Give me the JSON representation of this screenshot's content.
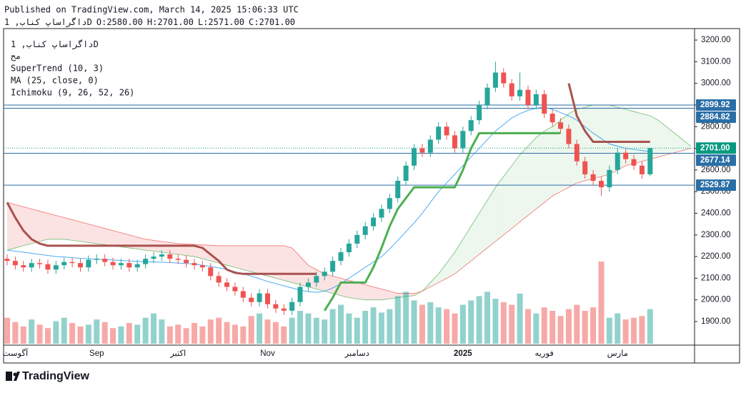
{
  "chart_data": {
    "type": "candlestick",
    "published": "Published on TradingView.com, March 14, 2025 15:06:33 UTC",
    "symbol": "داگراساپ کناب",
    "interval": "1D",
    "ohlc": [
      {
        "name": "O",
        "value": 2580,
        "label": "2580.00"
      },
      {
        "name": "H",
        "value": 2701,
        "label": "2701.00"
      },
      {
        "name": "L",
        "value": 2571,
        "label": "2571.00"
      },
      {
        "name": "C",
        "value": 2701,
        "label": "2701.00"
      }
    ],
    "legend": [
      "مح",
      "SuperTrend (10, 3)",
      "MA (25, close, 0)",
      "Ichimoku (9, 26, 52, 26)"
    ],
    "brand": "TradingView",
    "ylim": [
      1791,
      3253
    ],
    "yticks": [
      {
        "value": 1900,
        "label": "1900.00"
      },
      {
        "value": 2000,
        "label": "2000.00"
      },
      {
        "value": 2100,
        "label": "2100.00"
      },
      {
        "value": 2200,
        "label": "2200.00"
      },
      {
        "value": 2300,
        "label": "2300.00"
      },
      {
        "value": 2400,
        "label": "2400.00"
      },
      {
        "value": 2500,
        "label": "2500.00"
      },
      {
        "value": 2600,
        "label": "2600.00"
      },
      {
        "value": 2700,
        "label": "2700.00"
      },
      {
        "value": 2800,
        "label": "2800.00"
      },
      {
        "value": 2900,
        "label": "2900.00"
      },
      {
        "value": 3000,
        "label": "3000.00"
      },
      {
        "value": 3100,
        "label": "3100.00"
      },
      {
        "value": 3200,
        "label": "3200.00"
      }
    ],
    "x_labels": [
      {
        "label": "آگوست",
        "at": 1
      },
      {
        "label": "Sep",
        "at": 11
      },
      {
        "label": "اکتبر",
        "at": 21
      },
      {
        "label": "Nov",
        "at": 32
      },
      {
        "label": "دسامبر",
        "at": 43
      },
      {
        "label": "2025",
        "at": 56,
        "bold": true
      },
      {
        "label": "فوریه",
        "at": 66
      },
      {
        "label": "مارس",
        "at": 75
      }
    ],
    "up_color": "#26a69a",
    "down_color": "#ef5350",
    "candles": {
      "open": [
        2190,
        2180,
        2160,
        2150,
        2170,
        2165,
        2140,
        2160,
        2175,
        2170,
        2150,
        2185,
        2190,
        2175,
        2160,
        2170,
        2150,
        2165,
        2190,
        2200,
        2210,
        2190,
        2185,
        2170,
        2160,
        2150,
        2110,
        2080,
        2060,
        2040,
        2010,
        1990,
        2030,
        1980,
        1960,
        1950,
        1990,
        2060,
        2080,
        2110,
        2130,
        2180,
        2220,
        2260,
        2300,
        2340,
        2380,
        2420,
        2470,
        2550,
        2620,
        2700,
        2680,
        2740,
        2800,
        2760,
        2700,
        2780,
        2830,
        2900,
        2980,
        3050,
        3000,
        2940,
        2970,
        2900,
        2950,
        2860,
        2820,
        2790,
        2720,
        2640,
        2580,
        2550,
        2520,
        2600,
        2680,
        2650,
        2620,
        2580
      ],
      "high": [
        2210,
        2200,
        2180,
        2190,
        2190,
        2185,
        2180,
        2195,
        2195,
        2190,
        2205,
        2210,
        2210,
        2195,
        2190,
        2190,
        2185,
        2210,
        2220,
        2230,
        2230,
        2210,
        2205,
        2190,
        2180,
        2170,
        2130,
        2100,
        2080,
        2060,
        2030,
        2050,
        2050,
        2000,
        1980,
        2010,
        2080,
        2100,
        2130,
        2150,
        2200,
        2240,
        2280,
        2320,
        2360,
        2400,
        2440,
        2490,
        2570,
        2640,
        2720,
        2720,
        2760,
        2820,
        2820,
        2780,
        2800,
        2850,
        2920,
        3000,
        3100,
        3070,
        3020,
        3050,
        2990,
        2970,
        2970,
        2880,
        2840,
        2810,
        2740,
        2660,
        2600,
        2570,
        2620,
        2700,
        2700,
        2670,
        2640,
        2701
      ],
      "low": [
        2160,
        2140,
        2130,
        2130,
        2145,
        2120,
        2120,
        2140,
        2150,
        2130,
        2130,
        2165,
        2155,
        2140,
        2140,
        2130,
        2130,
        2145,
        2170,
        2180,
        2170,
        2165,
        2150,
        2140,
        2130,
        2090,
        2060,
        2040,
        2020,
        1990,
        1970,
        1970,
        1960,
        1940,
        1930,
        1930,
        1970,
        2040,
        2060,
        2090,
        2110,
        2160,
        2200,
        2240,
        2280,
        2320,
        2360,
        2400,
        2450,
        2530,
        2600,
        2660,
        2660,
        2720,
        2740,
        2680,
        2680,
        2760,
        2810,
        2880,
        2960,
        2980,
        2920,
        2920,
        2880,
        2880,
        2840,
        2800,
        2770,
        2700,
        2620,
        2560,
        2530,
        2480,
        2500,
        2580,
        2630,
        2600,
        2560,
        2571
      ],
      "close": [
        2180,
        2160,
        2150,
        2170,
        2165,
        2140,
        2160,
        2175,
        2170,
        2150,
        2185,
        2190,
        2175,
        2160,
        2170,
        2150,
        2165,
        2190,
        2200,
        2210,
        2190,
        2185,
        2170,
        2160,
        2150,
        2110,
        2080,
        2060,
        2040,
        2010,
        1990,
        2030,
        1980,
        1960,
        1950,
        1990,
        2060,
        2080,
        2110,
        2130,
        2180,
        2220,
        2260,
        2300,
        2340,
        2380,
        2420,
        2470,
        2550,
        2620,
        2700,
        2680,
        2740,
        2800,
        2760,
        2700,
        2780,
        2830,
        2900,
        2980,
        3050,
        3000,
        2940,
        2970,
        2900,
        2950,
        2860,
        2820,
        2790,
        2720,
        2640,
        2580,
        2550,
        2520,
        2600,
        2680,
        2650,
        2620,
        2580,
        2701
      ]
    },
    "volume": [
      30,
      25,
      20,
      28,
      22,
      18,
      26,
      30,
      24,
      20,
      22,
      28,
      25,
      18,
      20,
      24,
      22,
      30,
      35,
      28,
      20,
      22,
      18,
      24,
      20,
      28,
      30,
      25,
      22,
      20,
      32,
      35,
      28,
      25,
      20,
      30,
      38,
      35,
      30,
      28,
      40,
      45,
      35,
      30,
      38,
      42,
      36,
      40,
      55,
      60,
      50,
      45,
      48,
      42,
      40,
      35,
      45,
      50,
      55,
      60,
      52,
      48,
      45,
      58,
      40,
      35,
      42,
      38,
      32,
      40,
      45,
      38,
      42,
      95,
      30,
      35,
      28,
      30,
      32,
      40
    ],
    "ma": {
      "color": "#2196f3",
      "values": [
        2230,
        2225,
        2220,
        2215,
        2210,
        2205,
        2200,
        2198,
        2195,
        2192,
        2190,
        2188,
        2186,
        2184,
        2182,
        2180,
        2178,
        2176,
        2175,
        2174,
        2172,
        2170,
        2168,
        2165,
        2160,
        2155,
        2148,
        2140,
        2130,
        2120,
        2110,
        2098,
        2085,
        2075,
        2065,
        2055,
        2045,
        2038,
        2035,
        2040,
        2055,
        2075,
        2100,
        2125,
        2150,
        2175,
        2200,
        2235,
        2275,
        2315,
        2355,
        2400,
        2450,
        2500,
        2540,
        2580,
        2620,
        2660,
        2700,
        2740,
        2780,
        2810,
        2840,
        2860,
        2875,
        2885,
        2890,
        2880,
        2865,
        2850,
        2830,
        2800,
        2770,
        2745,
        2720,
        2710,
        2700,
        2695,
        2690,
        2685
      ]
    },
    "supertrend": {
      "up_color": "#4caf50",
      "down_color": "#a9524f",
      "values": [
        2450,
        2380,
        2320,
        2280,
        2260,
        2250,
        2250,
        2250,
        2250,
        2250,
        2250,
        2250,
        2250,
        2250,
        2250,
        2250,
        2250,
        2250,
        2250,
        2250,
        2250,
        2250,
        2250,
        2250,
        2240,
        2210,
        2180,
        2140,
        2125,
        2120,
        2120,
        2120,
        2120,
        2120,
        2120,
        2120,
        2120,
        2120,
        2120,
        1950,
        2010,
        2080,
        2080,
        2080,
        2080,
        2150,
        2240,
        2340,
        2420,
        2470,
        2520,
        2520,
        2520,
        2520,
        2520,
        2520,
        2600,
        2700,
        2770,
        2770,
        2770,
        2770,
        2770,
        2770,
        2770,
        2770,
        2770,
        2770,
        2770,
        3000,
        2850,
        2780,
        2730,
        2730,
        2730,
        2730,
        2730,
        2730,
        2730,
        2730
      ]
    },
    "ichimoku": {
      "span_a": [
        2230,
        2240,
        2250,
        2260,
        2270,
        2280,
        2280,
        2280,
        2275,
        2270,
        2265,
        2260,
        2255,
        2250,
        2245,
        2240,
        2235,
        2230,
        2225,
        2220,
        2215,
        2210,
        2205,
        2200,
        2190,
        2180,
        2170,
        2160,
        2150,
        2140,
        2130,
        2120,
        2110,
        2100,
        2090,
        2080,
        2070,
        2060,
        2050,
        2040,
        2030,
        2020,
        2010,
        2005,
        2000,
        2000,
        2000,
        2005,
        2010,
        2015,
        2020,
        2040,
        2080,
        2120,
        2170,
        2220,
        2280,
        2340,
        2400,
        2460,
        2520,
        2570,
        2620,
        2670,
        2710,
        2750,
        2780,
        2800,
        2830,
        2860,
        2880,
        2890,
        2900,
        2900,
        2900,
        2890,
        2880,
        2870,
        2860,
        2850,
        2830,
        2800,
        2770,
        2740,
        2710
      ],
      "span_b": [
        2450,
        2440,
        2430,
        2420,
        2410,
        2400,
        2390,
        2380,
        2370,
        2360,
        2350,
        2340,
        2330,
        2320,
        2310,
        2300,
        2290,
        2280,
        2275,
        2270,
        2265,
        2260,
        2258,
        2256,
        2254,
        2252,
        2250,
        2250,
        2250,
        2250,
        2250,
        2250,
        2250,
        2250,
        2250,
        2240,
        2200,
        2160,
        2140,
        2120,
        2110,
        2100,
        2090,
        2080,
        2070,
        2060,
        2050,
        2040,
        2030,
        2030,
        2030,
        2040,
        2060,
        2080,
        2100,
        2120,
        2150,
        2180,
        2210,
        2240,
        2270,
        2300,
        2330,
        2360,
        2390,
        2420,
        2450,
        2480,
        2500,
        2520,
        2540,
        2550,
        2560,
        2570,
        2580,
        2600,
        2620,
        2630,
        2640,
        2650,
        2660,
        2670,
        2680,
        2690,
        2700
      ],
      "a_color": "#4caf50",
      "b_color": "#ef5350"
    },
    "levels": [
      {
        "value": 2899.92,
        "color": "#2a6ea6"
      },
      {
        "value": 2884.82,
        "color": "#2a6ea6"
      },
      {
        "value": 2701,
        "label": "2701.00",
        "color": "#089981",
        "dotted": true
      },
      {
        "value": 2677.14,
        "color": "#2a6ea6"
      },
      {
        "value": 2529.87,
        "color": "#2a6ea6"
      }
    ]
  }
}
